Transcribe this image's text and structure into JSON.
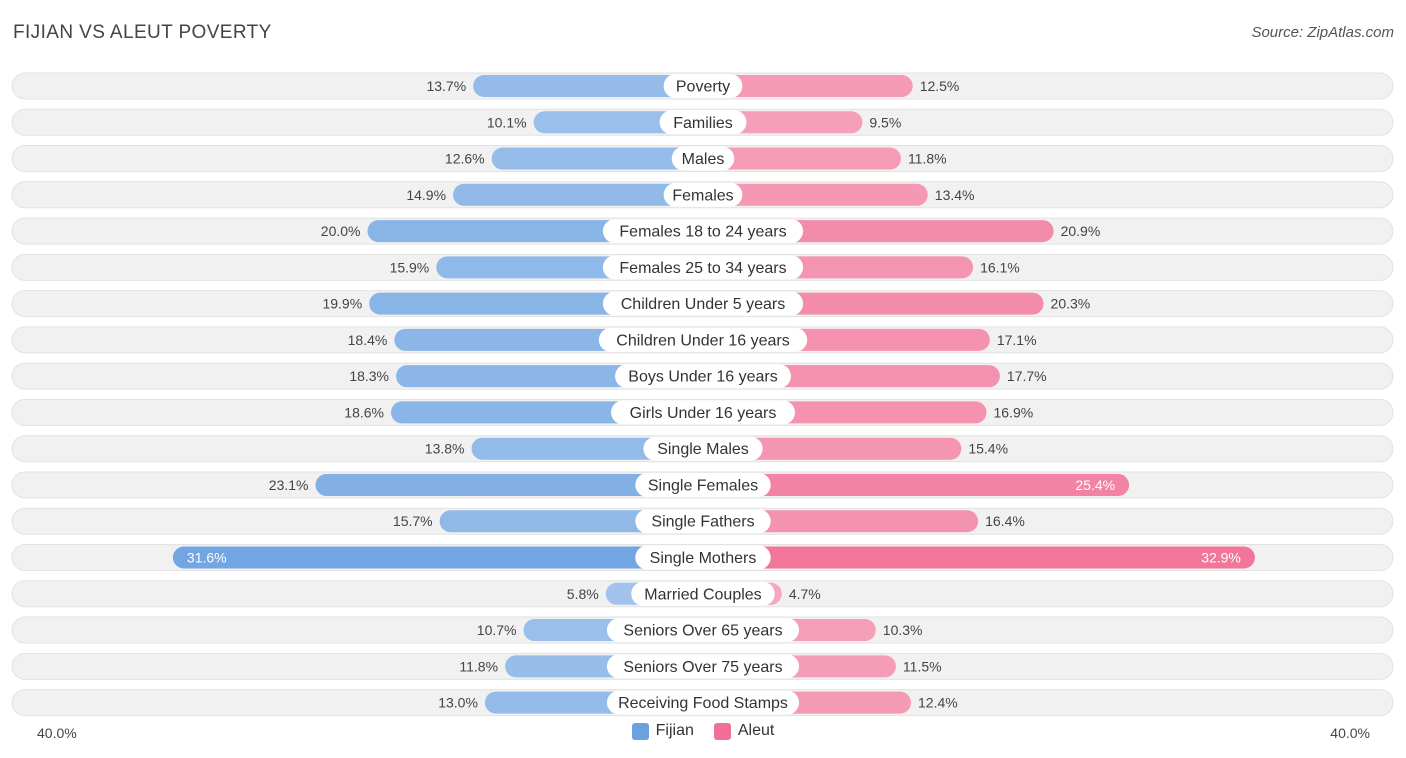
{
  "header": {
    "title": "FIJIAN VS ALEUT POVERTY",
    "source": "Source: ZipAtlas.com"
  },
  "colors": {
    "fijian": "#6aa1e0",
    "aleut": "#f07096"
  },
  "chart_data": {
    "type": "bar",
    "orientation": "horizontal-diverging",
    "title": "FIJIAN VS ALEUT POVERTY",
    "xlim": [
      0,
      40
    ],
    "axis_min_label": "40.0%",
    "axis_max_label": "40.0%",
    "legend": [
      "Fijian",
      "Aleut"
    ],
    "categories": [
      "Poverty",
      "Families",
      "Males",
      "Females",
      "Females 18 to 24 years",
      "Females 25 to 34 years",
      "Children Under 5 years",
      "Children Under 16 years",
      "Boys Under 16 years",
      "Girls Under 16 years",
      "Single Males",
      "Single Females",
      "Single Fathers",
      "Single Mothers",
      "Married Couples",
      "Seniors Over 65 years",
      "Seniors Over 75 years",
      "Receiving Food Stamps"
    ],
    "series": [
      {
        "name": "Fijian",
        "values": [
          13.7,
          10.1,
          12.6,
          14.9,
          20.0,
          15.9,
          19.9,
          18.4,
          18.3,
          18.6,
          13.8,
          23.1,
          15.7,
          31.6,
          5.8,
          10.7,
          11.8,
          13.0
        ],
        "labels": [
          "13.7%",
          "10.1%",
          "12.6%",
          "14.9%",
          "20.0%",
          "15.9%",
          "19.9%",
          "18.4%",
          "18.3%",
          "18.6%",
          "13.8%",
          "23.1%",
          "15.7%",
          "31.6%",
          "5.8%",
          "10.7%",
          "11.8%",
          "13.0%"
        ]
      },
      {
        "name": "Aleut",
        "values": [
          12.5,
          9.5,
          11.8,
          13.4,
          20.9,
          16.1,
          20.3,
          17.1,
          17.7,
          16.9,
          15.4,
          25.4,
          16.4,
          32.9,
          4.7,
          10.3,
          11.5,
          12.4
        ],
        "labels": [
          "12.5%",
          "9.5%",
          "11.8%",
          "13.4%",
          "20.9%",
          "16.1%",
          "20.3%",
          "17.1%",
          "17.7%",
          "16.9%",
          "15.4%",
          "25.4%",
          "16.4%",
          "32.9%",
          "4.7%",
          "10.3%",
          "11.5%",
          "12.4%"
        ]
      }
    ]
  }
}
